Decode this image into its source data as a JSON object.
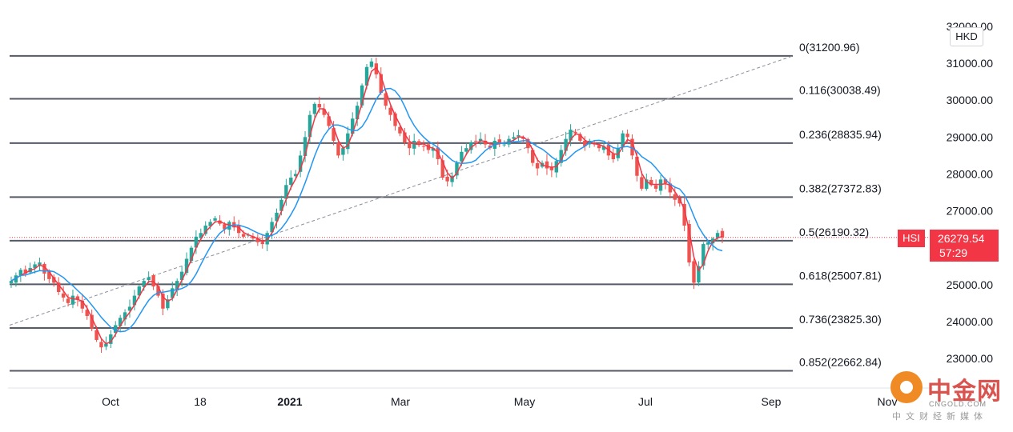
{
  "chart_data": {
    "type": "candlestick",
    "symbol": "HSI",
    "currency": "HKD",
    "last_price": "26279.54",
    "countdown": "57:29",
    "y_axis": {
      "ticks": [
        "32000.00",
        "31000.00",
        "30000.00",
        "29000.00",
        "28000.00",
        "27000.00",
        "26000.00",
        "25000.00",
        "24000.00",
        "23000.00"
      ],
      "ylim": [
        22600,
        32000
      ]
    },
    "x_axis": {
      "ticks": [
        {
          "label": "Oct",
          "bold": false
        },
        {
          "label": "18",
          "bold": false
        },
        {
          "label": "2021",
          "bold": true
        },
        {
          "label": "Mar",
          "bold": false
        },
        {
          "label": "May",
          "bold": false
        },
        {
          "label": "Jul",
          "bold": false
        },
        {
          "label": "Sep",
          "bold": false
        },
        {
          "label": "Nov",
          "bold": false
        }
      ]
    },
    "fib_levels": [
      {
        "label": "0(31200.96)",
        "value": 31200.96
      },
      {
        "label": "0.116(30038.49)",
        "value": 30038.49
      },
      {
        "label": "0.236(28835.94)",
        "value": 28835.94
      },
      {
        "label": "0.382(27372.83)",
        "value": 27372.83
      },
      {
        "label": "0.5(26190.32)",
        "value": 26190.32
      },
      {
        "label": "0.618(25007.81)",
        "value": 25007.81
      },
      {
        "label": "0.736(23825.30)",
        "value": 23825.3
      },
      {
        "label": "0.852(22662.84)",
        "value": 22662.84
      }
    ],
    "series_close": [
      25100,
      25250,
      25400,
      25300,
      25450,
      25550,
      25600,
      25300,
      25150,
      25050,
      24800,
      24650,
      24500,
      24700,
      24600,
      24350,
      24150,
      23800,
      23500,
      23300,
      23400,
      23650,
      23900,
      24100,
      24250,
      24400,
      24700,
      24950,
      25100,
      25200,
      24950,
      24700,
      24350,
      24600,
      24900,
      25100,
      25350,
      25700,
      26000,
      26300,
      26400,
      26600,
      26700,
      26800,
      26650,
      26500,
      26700,
      26550,
      26400,
      26300,
      26350,
      26250,
      26150,
      26100,
      26400,
      26700,
      26950,
      27300,
      27700,
      27900,
      28000,
      28500,
      29000,
      29600,
      29900,
      29800,
      29600,
      29300,
      28900,
      28500,
      28700,
      29100,
      29500,
      29850,
      30400,
      30900,
      31050,
      30700,
      30200,
      29850,
      29600,
      29300,
      29100,
      28850,
      28700,
      28900,
      28800,
      28750,
      28650,
      28700,
      28400,
      27900,
      27800,
      27950,
      28300,
      28600,
      28700,
      28850,
      28900,
      28950,
      28800,
      28700,
      28900,
      28850,
      28800,
      28950,
      29000,
      29050,
      28950,
      28700,
      28300,
      28150,
      28300,
      28150,
      28100,
      28350,
      28650,
      28950,
      29200,
      29100,
      28900,
      28750,
      28900,
      28800,
      28700,
      28750,
      28500,
      28400,
      28700,
      29100,
      29000,
      28500,
      27950,
      27600,
      27850,
      27700,
      27600,
      27850,
      27750,
      27500,
      27300,
      27200,
      26600,
      25600,
      25050,
      25500,
      26100,
      26150,
      26250,
      26400,
      26279
    ],
    "ma_short_color": "#f23645",
    "ma_long_color": "#2196f3",
    "up_color": "#26a69a",
    "down_color": "#ef5350",
    "trendline": {
      "from_value": 23900,
      "to_value": 31200
    }
  },
  "watermark": {
    "title": "中金网",
    "site": "CNGOLD.COM",
    "subtitle": "中文财经新媒体"
  }
}
